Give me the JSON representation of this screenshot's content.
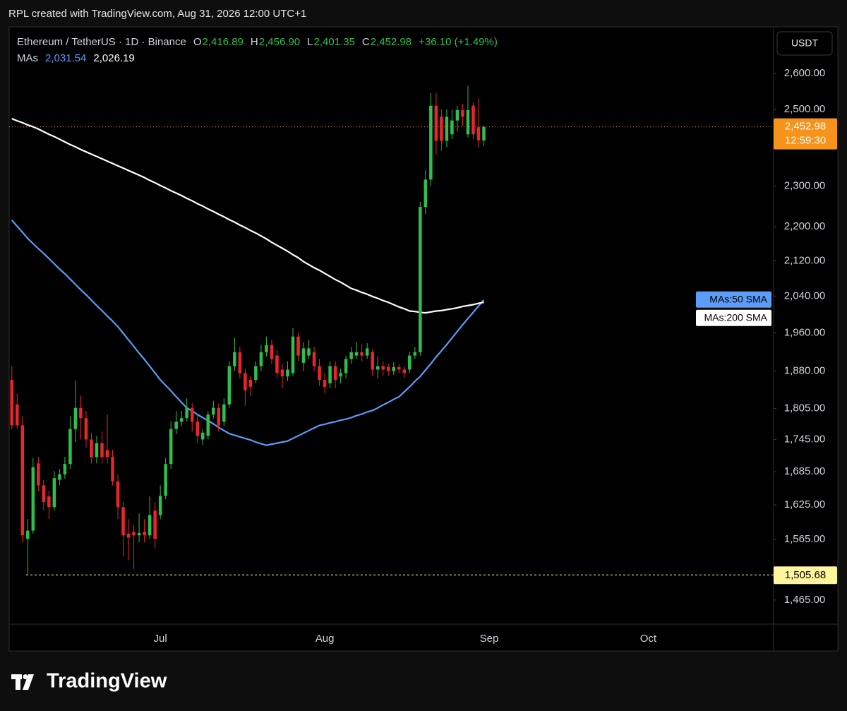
{
  "header": {
    "text": "RPL created with TradingView.com, Aug 31, 2026 12:00 UTC+1"
  },
  "chart_data": {
    "type": "candlestick",
    "title": "Ethereum / TetherUS · 1D · Binance",
    "ohlc_legend": [
      {
        "key": "O",
        "value": "2,416.89"
      },
      {
        "key": "H",
        "value": "2,456.90"
      },
      {
        "key": "L",
        "value": "2,401.35"
      },
      {
        "key": "C",
        "value": "2,452.98"
      }
    ],
    "change": "+36.10 (+1.49%)",
    "ma_legend": {
      "label": "MAs",
      "values": [
        "2,031.54",
        "2,026.19"
      ]
    },
    "currency": "USDT",
    "categories": [
      null,
      null,
      null,
      null,
      null,
      null,
      null,
      null,
      null,
      null,
      null,
      null,
      null,
      null,
      null,
      null,
      null,
      null,
      null,
      null,
      null,
      null,
      null,
      null,
      null,
      null,
      null,
      null,
      "Jul",
      null,
      null,
      null,
      null,
      null,
      null,
      null,
      null,
      null,
      null,
      null,
      null,
      null,
      null,
      null,
      null,
      null,
      null,
      null,
      null,
      null,
      null,
      null,
      null,
      null,
      null,
      null,
      null,
      null,
      null,
      "Aug",
      null,
      null,
      null,
      null,
      null,
      null,
      null,
      null,
      null,
      null,
      null,
      null,
      null,
      null,
      null,
      null,
      null,
      null,
      null,
      null,
      null,
      null,
      null,
      null,
      null,
      null,
      null,
      null,
      null,
      null,
      "Sep",
      null,
      null,
      null,
      null,
      null,
      null,
      null,
      null,
      null,
      null,
      null,
      null,
      null,
      null,
      null,
      null,
      null,
      null,
      null,
      null,
      null,
      null,
      null,
      null,
      null,
      null,
      null,
      null,
      null,
      "Oct",
      null,
      null,
      null,
      null,
      null,
      null,
      null,
      null,
      null,
      null,
      null,
      null,
      null,
      null,
      null,
      null,
      null,
      null,
      null,
      null,
      null,
      null,
      null
    ],
    "open": [
      1862,
      1813,
      1772,
      1566,
      1580,
      1700,
      1660,
      1640,
      1621,
      1670,
      1680,
      1699,
      1765,
      1806,
      1786,
      1745,
      1712,
      1738,
      1725,
      1712,
      1667,
      1621,
      1575,
      1578,
      1572,
      1578,
      1572,
      1615,
      1607,
      1641,
      1699,
      1765,
      1779,
      1786,
      1806,
      1779,
      1745,
      1752,
      1793,
      1806,
      1779,
      1813,
      1890,
      1919,
      1876,
      1862,
      1862,
      1890,
      1919,
      1934,
      1912,
      1883,
      1869,
      1876,
      1952,
      1897,
      1912,
      1919,
      1890,
      1862,
      1855,
      1890,
      1869,
      1876,
      1905,
      1912,
      1919,
      1912,
      1919,
      1883,
      1890,
      1888,
      1880,
      1888,
      1883,
      1883,
      1912,
      1919,
      2248,
      2316,
      2510,
      2480,
      2416,
      2433,
      2470,
      2498,
      2433,
      2510,
      2452,
      2416.89,
      null,
      null,
      null,
      null,
      null,
      null,
      null,
      null,
      null,
      null,
      null,
      null,
      null,
      null,
      null,
      null,
      null,
      null,
      null,
      null,
      null,
      null,
      null,
      null,
      null,
      null,
      null,
      null,
      null,
      null,
      null,
      null,
      null,
      null,
      null,
      null,
      null,
      null,
      null,
      null,
      null,
      null,
      null,
      null,
      null,
      null,
      null,
      null,
      null,
      null,
      null,
      null,
      null,
      null
    ],
    "high": [
      1890,
      1834,
      1790,
      1600,
      1710,
      1712,
      1670,
      1650,
      1686,
      1690,
      1712,
      1790,
      1860,
      1830,
      1800,
      1758,
      1752,
      1760,
      1793,
      1725,
      1680,
      1630,
      1600,
      1590,
      1610,
      1600,
      1640,
      1630,
      1660,
      1710,
      1780,
      1800,
      1800,
      1825,
      1815,
      1790,
      1765,
      1800,
      1820,
      1815,
      1825,
      1900,
      1949,
      1930,
      1885,
      1870,
      1900,
      1935,
      1952,
      1945,
      1925,
      1895,
      1900,
      1970,
      1960,
      1940,
      1945,
      1930,
      1905,
      1875,
      1900,
      1900,
      1885,
      1912,
      1930,
      1940,
      1935,
      1938,
      1925,
      1910,
      1900,
      1895,
      1898,
      1895,
      1890,
      1920,
      1930,
      2260,
      2340,
      2545,
      2545,
      2500,
      2500,
      2500,
      2510,
      2515,
      2565,
      2520,
      2530,
      2456.9,
      null,
      null,
      null,
      null,
      null,
      null,
      null,
      null,
      null,
      null,
      null,
      null,
      null,
      null,
      null,
      null,
      null,
      null,
      null,
      null,
      null,
      null,
      null,
      null,
      null,
      null,
      null,
      null,
      null,
      null,
      null,
      null,
      null,
      null,
      null,
      null,
      null,
      null,
      null,
      null,
      null,
      null,
      null,
      null,
      null,
      null,
      null,
      null,
      null,
      null,
      null,
      null,
      null,
      null
    ],
    "low": [
      1765,
      1765,
      1560,
      1505.68,
      1575,
      1650,
      1615,
      1600,
      1615,
      1660,
      1672,
      1690,
      1740,
      1745,
      1730,
      1700,
      1700,
      1700,
      1700,
      1660,
      1600,
      1536,
      1530,
      1515,
      1560,
      1560,
      1565,
      1550,
      1600,
      1635,
      1690,
      1755,
      1770,
      1780,
      1760,
      1738,
      1735,
      1745,
      1785,
      1760,
      1770,
      1806,
      1880,
      1865,
      1810,
      1830,
      1855,
      1880,
      1910,
      1895,
      1865,
      1845,
      1860,
      1870,
      1900,
      1880,
      1905,
      1880,
      1850,
      1835,
      1845,
      1845,
      1855,
      1865,
      1895,
      1905,
      1900,
      1905,
      1870,
      1865,
      1870,
      1870,
      1872,
      1875,
      1866,
      1876,
      1905,
      1912,
      2230,
      2300,
      2380,
      2390,
      2400,
      2420,
      2440,
      2455,
      2425,
      2420,
      2400,
      2401.35,
      null,
      null,
      null,
      null,
      null,
      null,
      null,
      null,
      null,
      null,
      null,
      null,
      null,
      null,
      null,
      null,
      null,
      null,
      null,
      null,
      null,
      null,
      null,
      null,
      null,
      null,
      null,
      null,
      null,
      null,
      null,
      null,
      null,
      null,
      null,
      null,
      null,
      null,
      null,
      null,
      null,
      null,
      null,
      null,
      null,
      null,
      null,
      null,
      null,
      null,
      null,
      null,
      null,
      null
    ],
    "close": [
      1772,
      1772,
      1572,
      1580,
      1693,
      1660,
      1630,
      1621,
      1673,
      1680,
      1699,
      1765,
      1806,
      1786,
      1745,
      1712,
      1738,
      1712,
      1712,
      1667,
      1621,
      1572,
      1568,
      1572,
      1576,
      1572,
      1607,
      1566,
      1641,
      1699,
      1765,
      1779,
      1786,
      1806,
      1779,
      1752,
      1758,
      1793,
      1806,
      1772,
      1813,
      1890,
      1919,
      1876,
      1841,
      1848,
      1890,
      1919,
      1934,
      1905,
      1876,
      1869,
      1883,
      1952,
      1912,
      1927,
      1927,
      1890,
      1862,
      1848,
      1890,
      1862,
      1876,
      1905,
      1919,
      1919,
      1912,
      1927,
      1883,
      1890,
      1883,
      1880,
      1888,
      1883,
      1876,
      1912,
      1919,
      2248,
      2316,
      2510,
      2416,
      2416,
      2480,
      2470,
      2498,
      2480,
      2498,
      2433,
      2416.89,
      2452.98,
      null,
      null,
      null,
      null,
      null,
      null,
      null,
      null,
      null,
      null,
      null,
      null,
      null,
      null,
      null,
      null,
      null,
      null,
      null,
      null,
      null,
      null,
      null,
      null,
      null,
      null,
      null,
      null,
      null,
      null,
      null,
      null,
      null,
      null,
      null,
      null,
      null,
      null,
      null,
      null,
      null,
      null,
      null,
      null,
      null,
      null,
      null,
      null,
      null,
      null,
      null,
      null,
      null,
      null
    ],
    "up_color": "#2fbf4a",
    "down_color": "#e8262c",
    "series": [
      {
        "name": "MAs:50 SMA",
        "color": "#5b9cf6",
        "values": [
          2216,
          2201,
          2187,
          2172,
          2160,
          2148,
          2137,
          2125,
          2113,
          2101,
          2090,
          2078,
          2066,
          2054,
          2043,
          2031,
          2019,
          2008,
          1996,
          1985,
          1973,
          1959,
          1945,
          1931,
          1917,
          1904,
          1890,
          1876,
          1862,
          1851,
          1840,
          1828,
          1817,
          1806,
          1800,
          1793,
          1787,
          1781,
          1775,
          1768,
          1762,
          1756,
          1753,
          1750,
          1747,
          1744,
          1740,
          1737,
          1734,
          1736,
          1738,
          1740,
          1742,
          1747,
          1752,
          1757,
          1762,
          1767,
          1772,
          1774,
          1777,
          1779,
          1782,
          1784,
          1787,
          1791,
          1794,
          1798,
          1801,
          1806,
          1812,
          1817,
          1823,
          1828,
          1838,
          1848,
          1859,
          1869,
          1882,
          1895,
          1909,
          1922,
          1935,
          1949,
          1963,
          1977,
          1991,
          2004,
          2018,
          2031.54,
          null,
          null,
          null,
          null,
          null,
          null,
          null,
          null,
          null,
          null,
          null,
          null,
          null,
          null,
          null,
          null,
          null,
          null,
          null,
          null,
          null,
          null,
          null,
          null,
          null,
          null,
          null,
          null,
          null,
          null,
          null,
          null,
          null,
          null,
          null,
          null,
          null,
          null,
          null,
          null,
          null,
          null,
          null,
          null,
          null,
          null,
          null,
          null,
          null,
          null,
          null,
          null,
          null,
          null
        ]
      },
      {
        "name": "MAs:200 SMA",
        "color": "#ffffff",
        "values": [
          2475,
          2469,
          2464,
          2458,
          2453,
          2447,
          2440,
          2433,
          2427,
          2420,
          2413,
          2406,
          2400,
          2393,
          2387,
          2381,
          2375,
          2369,
          2363,
          2357,
          2351,
          2345,
          2339,
          2333,
          2327,
          2321,
          2314,
          2308,
          2301,
          2295,
          2288,
          2282,
          2276,
          2269,
          2263,
          2256,
          2250,
          2243,
          2237,
          2230,
          2224,
          2217,
          2211,
          2204,
          2198,
          2191,
          2185,
          2178,
          2171,
          2163,
          2156,
          2149,
          2142,
          2134,
          2127,
          2118,
          2111,
          2104,
          2098,
          2091,
          2084,
          2077,
          2071,
          2064,
          2057,
          2053,
          2048,
          2044,
          2039,
          2035,
          2030,
          2026,
          2021,
          2016,
          2012,
          2007,
          2006,
          2004,
          2003,
          2005,
          2007,
          2008,
          2010,
          2012,
          2014,
          2017,
          2019,
          2021,
          2024,
          2026.19,
          null,
          null,
          null,
          null,
          null,
          null,
          null,
          null,
          null,
          null,
          null,
          null,
          null,
          null,
          null,
          null,
          null,
          null,
          null,
          null,
          null,
          null,
          null,
          null,
          null,
          null,
          null,
          null,
          null,
          null,
          null,
          null,
          null,
          null,
          null,
          null,
          null,
          null,
          null,
          null,
          null,
          null,
          null,
          null,
          null,
          null,
          null,
          null,
          null,
          null,
          null,
          null,
          null,
          null
        ]
      }
    ],
    "ylim": [
      1427,
      2731
    ],
    "log_scale": true,
    "yticks": [
      {
        "value": 2600,
        "label": "2,600.00"
      },
      {
        "value": 2500,
        "label": "2,500.00"
      },
      {
        "value": 2300,
        "label": "2,300.00"
      },
      {
        "value": 2200,
        "label": "2,200.00"
      },
      {
        "value": 2120,
        "label": "2,120.00"
      },
      {
        "value": 2040,
        "label": "2,040.00"
      },
      {
        "value": 1960,
        "label": "1,960.00"
      },
      {
        "value": 1880,
        "label": "1,880.00"
      },
      {
        "value": 1805,
        "label": "1,805.00"
      },
      {
        "value": 1745,
        "label": "1,745.00"
      },
      {
        "value": 1685,
        "label": "1,685.00"
      },
      {
        "value": 1625,
        "label": "1,625.00"
      },
      {
        "value": 1565,
        "label": "1,565.00"
      },
      {
        "value": 1465,
        "label": "1,465.00"
      }
    ],
    "last_price": {
      "value": 2452.98,
      "label": "2,452.98",
      "countdown": "12:59:30",
      "color": "#f7931a"
    },
    "low_marker": {
      "value": 1505.68,
      "label": "1,505.68",
      "color": "#fff59d"
    }
  },
  "footer": {
    "brand": "TradingView"
  }
}
